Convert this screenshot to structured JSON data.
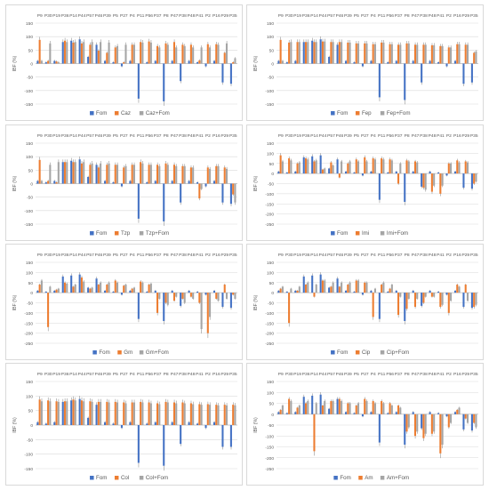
{
  "figure": {
    "x_categories": [
      "P9",
      "P30",
      "P19",
      "P36",
      "P14",
      "P44",
      "P57",
      "P46",
      "P39",
      "P5",
      "P27",
      "P4",
      "P11",
      "P56",
      "P37",
      "P8",
      "P47",
      "P38",
      "P48",
      "P41",
      "P2",
      "P16",
      "P29",
      "P35"
    ],
    "ylabel": "IBF (%)",
    "colors": {
      "Fom": "#4472c4",
      "antibiotic": "#ed7d31",
      "combination": "#a5a5a5",
      "grid": "#d9d9d9",
      "axis": "#bfbfbf",
      "text": "#595959"
    }
  },
  "chart_data": [
    {
      "type": "bar",
      "ylabel": "IBF (%)",
      "ylim": [
        -150,
        150
      ],
      "yticks": [
        150,
        100,
        50,
        0,
        -50,
        -100,
        -150
      ],
      "categories": [
        "P9",
        "P30",
        "P19",
        "P36",
        "P14",
        "P44",
        "P57",
        "P46",
        "P39",
        "P5",
        "P27",
        "P4",
        "P11",
        "P56",
        "P37",
        "P8",
        "P47",
        "P38",
        "P48",
        "P41",
        "P2",
        "P16",
        "P29",
        "P35"
      ],
      "series": [
        {
          "name": "Fom",
          "values": [
            10,
            5,
            10,
            80,
            85,
            90,
            25,
            70,
            10,
            5,
            -10,
            10,
            -130,
            5,
            10,
            -140,
            10,
            -65,
            10,
            5,
            -10,
            10,
            -70,
            -75
          ]
        },
        {
          "name": "Caz",
          "values": [
            88,
            10,
            8,
            85,
            78,
            75,
            70,
            48,
            40,
            60,
            5,
            70,
            80,
            82,
            65,
            75,
            80,
            70,
            70,
            12,
            72,
            72,
            40,
            5
          ]
        },
        {
          "name": "Caz+Fom",
          "values": [
            10,
            75,
            5,
            80,
            80,
            80,
            80,
            80,
            78,
            65,
            70,
            70,
            78,
            78,
            60,
            70,
            60,
            65,
            60,
            60,
            60,
            70,
            75,
            20
          ]
        }
      ]
    },
    {
      "type": "bar",
      "ylabel": "IBF (%)",
      "ylim": [
        -150,
        150
      ],
      "yticks": [
        150,
        100,
        50,
        0,
        -50,
        -100,
        -150
      ],
      "categories": [
        "P9",
        "P30",
        "P19",
        "P36",
        "P14",
        "P44",
        "P57",
        "P46",
        "P39",
        "P5",
        "P27",
        "P4",
        "P11",
        "P56",
        "P37",
        "P8",
        "P47",
        "P38",
        "P48",
        "P41",
        "P2",
        "P16",
        "P29",
        "P35"
      ],
      "series": [
        {
          "name": "Fom",
          "values": [
            10,
            5,
            10,
            80,
            85,
            90,
            25,
            70,
            10,
            5,
            -10,
            10,
            -125,
            5,
            10,
            -135,
            10,
            -70,
            10,
            5,
            -10,
            10,
            -75,
            -70
          ]
        },
        {
          "name": "Fep",
          "values": [
            88,
            78,
            80,
            80,
            80,
            82,
            80,
            80,
            78,
            75,
            75,
            72,
            78,
            72,
            70,
            75,
            70,
            70,
            68,
            65,
            60,
            72,
            70,
            40
          ]
        },
        {
          "name": "Fep+Fom",
          "values": [
            10,
            80,
            80,
            80,
            80,
            82,
            80,
            80,
            78,
            75,
            75,
            72,
            78,
            72,
            70,
            75,
            70,
            70,
            68,
            65,
            60,
            72,
            70,
            45
          ]
        }
      ]
    },
    {
      "type": "bar",
      "ylabel": "IBF (%)",
      "ylim": [
        -150,
        150
      ],
      "yticks": [
        150,
        100,
        50,
        0,
        -50,
        -100,
        -150
      ],
      "categories": [
        "P9",
        "P30",
        "P19",
        "P36",
        "P14",
        "P44",
        "P57",
        "P46",
        "P39",
        "P5",
        "P27",
        "P4",
        "P11",
        "P56",
        "P37",
        "P8",
        "P47",
        "P38",
        "P48",
        "P41",
        "P2",
        "P16",
        "P29",
        "P35"
      ],
      "series": [
        {
          "name": "Fom",
          "values": [
            10,
            5,
            10,
            80,
            85,
            90,
            25,
            70,
            10,
            5,
            -10,
            10,
            -130,
            5,
            10,
            -140,
            10,
            -70,
            10,
            5,
            -10,
            10,
            -70,
            -75
          ]
        },
        {
          "name": "Tzp",
          "values": [
            88,
            10,
            5,
            80,
            80,
            75,
            70,
            60,
            70,
            70,
            60,
            70,
            80,
            70,
            70,
            75,
            70,
            65,
            60,
            -55,
            60,
            65,
            60,
            -40
          ]
        },
        {
          "name": "Tzp+Fom",
          "values": [
            10,
            70,
            80,
            80,
            80,
            80,
            75,
            75,
            75,
            70,
            65,
            70,
            75,
            70,
            65,
            70,
            65,
            65,
            60,
            -20,
            55,
            65,
            55,
            -70
          ]
        }
      ]
    },
    {
      "type": "bar",
      "ylabel": "IBF (%)",
      "ylim": [
        -250,
        150
      ],
      "yticks": [
        150,
        100,
        50,
        0,
        -50,
        -100,
        -150,
        -200,
        -250
      ],
      "categories": [
        "P9",
        "P30",
        "P19",
        "P36",
        "P14",
        "P44",
        "P57",
        "P46",
        "P39",
        "P5",
        "P27",
        "P4",
        "P11",
        "P56",
        "P37",
        "P8",
        "P47",
        "P38",
        "P48",
        "P41",
        "P2",
        "P16",
        "P29",
        "P35"
      ],
      "series": [
        {
          "name": "Fom",
          "values": [
            10,
            5,
            10,
            80,
            85,
            90,
            25,
            70,
            10,
            5,
            -10,
            10,
            -130,
            5,
            10,
            -140,
            10,
            -65,
            10,
            5,
            -10,
            10,
            -70,
            -75
          ]
        },
        {
          "name": "Imi",
          "values": [
            90,
            75,
            50,
            75,
            60,
            20,
            55,
            -20,
            50,
            70,
            80,
            75,
            75,
            70,
            -50,
            65,
            60,
            -70,
            -90,
            -100,
            50,
            65,
            60,
            -50
          ]
        },
        {
          "name": "Imi+Fom",
          "values": [
            60,
            65,
            55,
            70,
            65,
            25,
            40,
            60,
            60,
            60,
            60,
            70,
            70,
            65,
            50,
            60,
            55,
            -80,
            -60,
            -60,
            50,
            55,
            55,
            -40
          ]
        }
      ]
    },
    {
      "type": "bar",
      "ylabel": "IBF (%)",
      "ylim": [
        -250,
        150
      ],
      "yticks": [
        150,
        100,
        50,
        0,
        -50,
        -100,
        -150,
        -200,
        -250
      ],
      "categories": [
        "P9",
        "P30",
        "P19",
        "P36",
        "P14",
        "P44",
        "P57",
        "P46",
        "P39",
        "P5",
        "P27",
        "P4",
        "P11",
        "P56",
        "P37",
        "P8",
        "P47",
        "P38",
        "P48",
        "P41",
        "P2",
        "P16",
        "P29",
        "P35"
      ],
      "series": [
        {
          "name": "Fom",
          "values": [
            10,
            5,
            10,
            80,
            85,
            90,
            25,
            70,
            10,
            5,
            -10,
            10,
            -130,
            5,
            10,
            -140,
            10,
            -65,
            10,
            5,
            -10,
            10,
            -70,
            -75
          ]
        },
        {
          "name": "Gm",
          "values": [
            40,
            -170,
            15,
            50,
            30,
            75,
            20,
            40,
            40,
            60,
            35,
            20,
            55,
            40,
            -100,
            -50,
            -40,
            -30,
            -20,
            -50,
            -200,
            -30,
            40,
            -10
          ]
        },
        {
          "name": "Gm+Fom",
          "values": [
            60,
            30,
            20,
            45,
            40,
            55,
            25,
            50,
            50,
            50,
            40,
            25,
            50,
            45,
            -30,
            -60,
            -20,
            -50,
            -30,
            -180,
            -120,
            -40,
            -30,
            -30
          ]
        }
      ]
    },
    {
      "type": "bar",
      "ylabel": "IBF (%)",
      "ylim": [
        -250,
        150
      ],
      "yticks": [
        150,
        100,
        50,
        0,
        -50,
        -100,
        -150,
        -200,
        -250
      ],
      "categories": [
        "P9",
        "P30",
        "P19",
        "P36",
        "P14",
        "P44",
        "P57",
        "P46",
        "P39",
        "P5",
        "P27",
        "P4",
        "P11",
        "P56",
        "P37",
        "P8",
        "P47",
        "P38",
        "P48",
        "P41",
        "P2",
        "P16",
        "P29",
        "P35"
      ],
      "series": [
        {
          "name": "Fom",
          "values": [
            10,
            5,
            10,
            80,
            85,
            90,
            25,
            70,
            10,
            5,
            -10,
            10,
            -130,
            5,
            10,
            -140,
            10,
            -65,
            10,
            5,
            -10,
            10,
            -70,
            -75
          ]
        },
        {
          "name": "Cip",
          "values": [
            20,
            -150,
            10,
            40,
            -20,
            60,
            30,
            30,
            40,
            60,
            50,
            -120,
            40,
            20,
            -110,
            -80,
            -70,
            -50,
            -20,
            -70,
            -100,
            40,
            40,
            -70
          ]
        },
        {
          "name": "Cip+Fom",
          "values": [
            30,
            20,
            30,
            50,
            40,
            60,
            50,
            50,
            50,
            60,
            50,
            20,
            50,
            40,
            -20,
            -30,
            -30,
            -20,
            -20,
            -60,
            -40,
            30,
            -40,
            -60
          ]
        }
      ]
    },
    {
      "type": "bar",
      "ylabel": "IBF (%)",
      "ylim": [
        -150,
        150
      ],
      "yticks": [
        150,
        100,
        50,
        0,
        -50,
        -100,
        -150
      ],
      "categories": [
        "P9",
        "P30",
        "P19",
        "P36",
        "P14",
        "P44",
        "P57",
        "P46",
        "P39",
        "P5",
        "P27",
        "P4",
        "P11",
        "P56",
        "P37",
        "P8",
        "P47",
        "P38",
        "P48",
        "P41",
        "P2",
        "P16",
        "P29",
        "P35"
      ],
      "series": [
        {
          "name": "Fom",
          "values": [
            10,
            5,
            10,
            80,
            85,
            90,
            25,
            70,
            10,
            5,
            -10,
            10,
            -130,
            5,
            10,
            -140,
            10,
            -65,
            10,
            5,
            -10,
            10,
            -75,
            -75
          ]
        },
        {
          "name": "Col",
          "values": [
            88,
            85,
            82,
            82,
            88,
            85,
            82,
            80,
            80,
            80,
            78,
            78,
            80,
            78,
            75,
            80,
            78,
            78,
            75,
            72,
            72,
            70,
            70,
            70
          ]
        },
        {
          "name": "Col+Fom",
          "values": [
            82,
            82,
            80,
            82,
            85,
            82,
            80,
            80,
            78,
            78,
            75,
            78,
            78,
            75,
            72,
            78,
            75,
            75,
            72,
            70,
            70,
            68,
            68,
            68
          ]
        }
      ]
    },
    {
      "type": "bar",
      "ylabel": "IBF (%)",
      "ylim": [
        -250,
        150
      ],
      "yticks": [
        150,
        100,
        50,
        0,
        -50,
        -100,
        -150,
        -200,
        -250
      ],
      "categories": [
        "P9",
        "P30",
        "P19",
        "P36",
        "P14",
        "P44",
        "P57",
        "P46",
        "P39",
        "P5",
        "P27",
        "P4",
        "P11",
        "P56",
        "P37",
        "P8",
        "P47",
        "P38",
        "P48",
        "P41",
        "P2",
        "P16",
        "P29",
        "P35"
      ],
      "series": [
        {
          "name": "Fom",
          "values": [
            10,
            5,
            10,
            80,
            85,
            90,
            25,
            70,
            10,
            5,
            -10,
            10,
            -130,
            5,
            10,
            -140,
            10,
            -65,
            10,
            5,
            -10,
            10,
            -70,
            -75
          ]
        },
        {
          "name": "Am",
          "values": [
            20,
            70,
            30,
            50,
            -170,
            40,
            60,
            70,
            50,
            40,
            70,
            60,
            60,
            50,
            40,
            -80,
            -100,
            -110,
            -90,
            -180,
            -60,
            20,
            -20,
            -40
          ]
        },
        {
          "name": "Am+Fom",
          "values": [
            40,
            60,
            40,
            60,
            50,
            60,
            60,
            60,
            50,
            50,
            60,
            50,
            50,
            40,
            30,
            -60,
            -80,
            -90,
            -80,
            -140,
            -40,
            30,
            -40,
            -60
          ]
        }
      ]
    }
  ]
}
